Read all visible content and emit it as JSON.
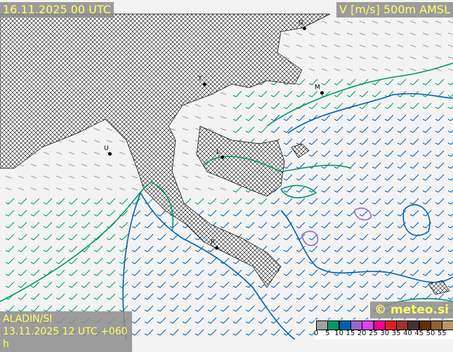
{
  "header": {
    "valid_time": "16.11.2025 00 UTC",
    "field": "V [m/s] 500m AMSL"
  },
  "footer": {
    "model": "ALADIN/SI",
    "run": "13.11.2025 12 UTC +060 h",
    "copyright": "© meteo.si"
  },
  "legend": {
    "unit": "m/s",
    "ticks": [
      "0",
      "5",
      "10",
      "15",
      "20",
      "25",
      "30",
      "35",
      "40",
      "45",
      "50",
      "55"
    ],
    "colors": [
      "#a0a0a0",
      "#009966",
      "#0060b0",
      "#9966cc",
      "#e040f0",
      "#f0009a",
      "#e02020",
      "#a03030",
      "#4a3030",
      "#603000",
      "#906030",
      "#b89868"
    ]
  },
  "cities": [
    {
      "label": "G"
    },
    {
      "label": "M"
    },
    {
      "label": "L"
    },
    {
      "label": "U"
    },
    {
      "label": "R"
    },
    {
      "label": "T"
    }
  ],
  "colors": {
    "land_hatch": "#000000",
    "background": "#f3f3f3",
    "contour_5": "#009966",
    "contour_10": "#0060b0",
    "contour_15": "#9966cc"
  }
}
